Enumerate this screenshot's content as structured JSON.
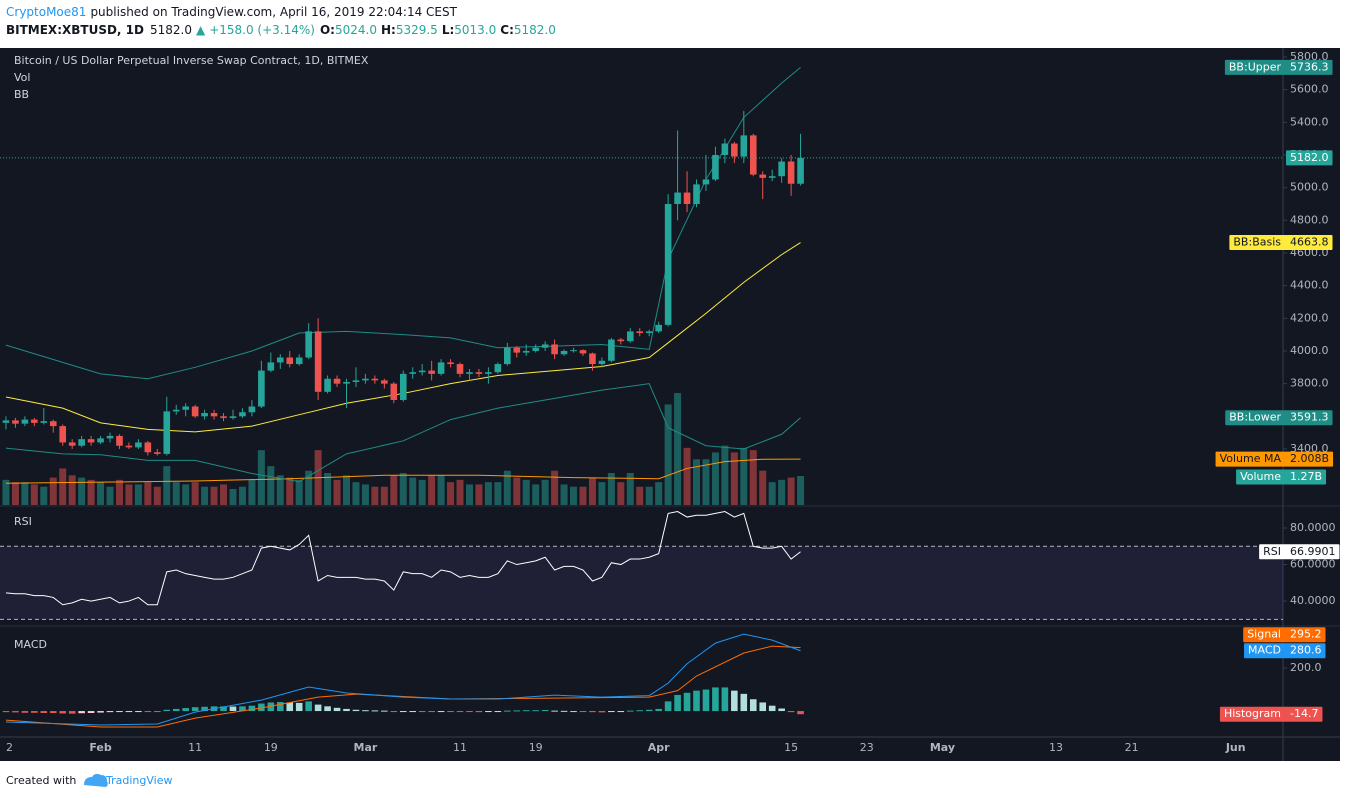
{
  "header": {
    "author": "CryptoMoe81",
    "published": "published on TradingView.com, April 16, 2019 22:04:14 CEST",
    "symbol": "BITMEX:XBTUSD, 1D",
    "price": "5182.0",
    "arrow": "▲",
    "change": "+158.0 (+3.14%)",
    "ohlc": [
      {
        "key": "O:",
        "value": "5024.0"
      },
      {
        "key": "H:",
        "value": "5329.5"
      },
      {
        "key": "L:",
        "value": "5013.0"
      },
      {
        "key": "C:",
        "value": "5182.0"
      }
    ]
  },
  "footer": {
    "text": "Created with",
    "brand": "TradingView"
  },
  "chart_data": [
    {
      "type": "candlestick",
      "title": "Bitcoin / US Dollar Perpetual Inverse Swap Contract, 1D, BITMEX",
      "study_labels": [
        "Vol",
        "BB"
      ],
      "up_color": "#26a69a",
      "down_color": "#ef5350",
      "open": [
        3560,
        3575,
        3555,
        3580,
        3560,
        3570,
        3540,
        3440,
        3420,
        3460,
        3440,
        3465,
        3480,
        3420,
        3410,
        3440,
        3380,
        3370,
        3630,
        3640,
        3660,
        3600,
        3620,
        3600,
        3590,
        3600,
        3625,
        3660,
        3880,
        3930,
        3960,
        3920,
        3960,
        4120,
        3750,
        3830,
        3800,
        3810,
        3820,
        3830,
        3820,
        3800,
        3700,
        3860,
        3870,
        3880,
        3860,
        3930,
        3920,
        3860,
        3870,
        3860,
        3870,
        3920,
        4020,
        3990,
        4000,
        4020,
        4040,
        3980,
        4000,
        4005,
        3985,
        3920,
        3940,
        4070,
        4060,
        4120,
        4110,
        4120,
        4160,
        4900,
        4970,
        4900,
        5020,
        5050,
        5200,
        5270,
        5190,
        5320,
        5080,
        5060,
        5070,
        5160,
        5024
      ],
      "high": [
        3600,
        3590,
        3600,
        3590,
        3650,
        3580,
        3550,
        3460,
        3480,
        3480,
        3480,
        3500,
        3490,
        3440,
        3460,
        3450,
        3400,
        3720,
        3670,
        3680,
        3670,
        3640,
        3640,
        3620,
        3640,
        3650,
        3700,
        3940,
        3990,
        3980,
        4000,
        3980,
        4170,
        4200,
        3850,
        3850,
        3830,
        3900,
        3860,
        3850,
        3830,
        3810,
        3880,
        3900,
        3920,
        3940,
        3950,
        3950,
        3930,
        3890,
        3890,
        3900,
        3930,
        4050,
        4030,
        4040,
        4040,
        4060,
        4070,
        4010,
        4020,
        4010,
        3990,
        3960,
        4080,
        4080,
        4140,
        4140,
        4130,
        4180,
        4960,
        5350,
        5100,
        5050,
        5200,
        5250,
        5300,
        5280,
        5470,
        5330,
        5100,
        5110,
        5180,
        5200,
        5329.5
      ],
      "low": [
        3520,
        3530,
        3540,
        3540,
        3550,
        3500,
        3420,
        3400,
        3410,
        3420,
        3430,
        3440,
        3400,
        3400,
        3400,
        3360,
        3360,
        3360,
        3610,
        3600,
        3590,
        3580,
        3580,
        3570,
        3580,
        3590,
        3600,
        3650,
        3870,
        3890,
        3900,
        3910,
        3950,
        3700,
        3740,
        3780,
        3650,
        3780,
        3800,
        3800,
        3770,
        3680,
        3690,
        3830,
        3850,
        3820,
        3850,
        3900,
        3840,
        3820,
        3840,
        3800,
        3860,
        3910,
        3960,
        3970,
        3990,
        4000,
        3950,
        3970,
        3990,
        3970,
        3880,
        3900,
        3930,
        4040,
        4050,
        4090,
        4090,
        4110,
        4150,
        4800,
        4850,
        4880,
        4980,
        5040,
        5150,
        5150,
        5150,
        5070,
        4930,
        5040,
        5030,
        4950,
        5013
      ],
      "close": [
        3575,
        3555,
        3580,
        3560,
        3570,
        3540,
        3440,
        3420,
        3460,
        3440,
        3465,
        3480,
        3420,
        3410,
        3440,
        3380,
        3370,
        3630,
        3640,
        3660,
        3600,
        3620,
        3600,
        3590,
        3600,
        3625,
        3660,
        3880,
        3930,
        3960,
        3920,
        3960,
        4120,
        3750,
        3830,
        3800,
        3810,
        3820,
        3830,
        3820,
        3800,
        3700,
        3860,
        3870,
        3880,
        3860,
        3930,
        3920,
        3860,
        3870,
        3860,
        3870,
        3920,
        4020,
        3990,
        4000,
        4020,
        4040,
        3980,
        4000,
        4005,
        3985,
        3920,
        3940,
        4070,
        4060,
        4120,
        4110,
        4120,
        4160,
        4900,
        4970,
        4900,
        5020,
        5050,
        5200,
        5270,
        5190,
        5320,
        5080,
        5060,
        5070,
        5160,
        5024,
        5182
      ],
      "last_price": {
        "value": 5182,
        "label": "5182.0"
      },
      "xlim": [
        -0.63,
        135
      ],
      "ylim": [
        3057,
        5855
      ],
      "yticks": [
        {
          "value": 3400,
          "label": "3400.0"
        },
        {
          "value": 3600,
          "label": "3600.0"
        },
        {
          "value": 3800,
          "label": "3800.0"
        },
        {
          "value": 4000,
          "label": "4000.0"
        },
        {
          "value": 4200,
          "label": "4200.0"
        },
        {
          "value": 4400,
          "label": "4400.0"
        },
        {
          "value": 4600,
          "label": "4600.0"
        },
        {
          "value": 4800,
          "label": "4800.0"
        },
        {
          "value": 5000,
          "label": "5000.0"
        },
        {
          "value": 5200,
          "label": "5200.0"
        },
        {
          "value": 5400,
          "label": "5400.0"
        },
        {
          "value": 5600,
          "label": "5600.0"
        },
        {
          "value": 5800,
          "label": "5800.0"
        }
      ],
      "bands": [
        {
          "name": "BB:Upper",
          "color": "#1f8c85",
          "x": [
            0,
            6,
            10,
            15,
            20,
            26,
            31,
            36,
            42,
            47,
            52,
            58,
            63,
            68,
            70,
            74,
            78,
            82,
            84
          ],
          "values": [
            4036,
            3930,
            3860,
            3830,
            3900,
            4000,
            4110,
            4120,
            4100,
            4080,
            4020,
            4030,
            4040,
            4010,
            4560,
            5050,
            5430,
            5640,
            5736.3
          ]
        },
        {
          "name": "BB:Basis",
          "color": "#ffeb3b",
          "x": [
            0,
            6,
            10,
            15,
            20,
            26,
            31,
            36,
            42,
            47,
            52,
            58,
            63,
            68,
            70,
            74,
            78,
            82,
            84
          ],
          "values": [
            3718,
            3650,
            3560,
            3520,
            3505,
            3540,
            3610,
            3680,
            3740,
            3800,
            3850,
            3880,
            3905,
            3960,
            4050,
            4230,
            4420,
            4590,
            4663.8
          ]
        },
        {
          "name": "BB:Lower",
          "color": "#1f8c85",
          "x": [
            0,
            6,
            10,
            15,
            20,
            26,
            31,
            36,
            42,
            47,
            52,
            58,
            63,
            68,
            70,
            74,
            78,
            82,
            84
          ],
          "values": [
            3405,
            3370,
            3365,
            3330,
            3330,
            3250,
            3200,
            3370,
            3450,
            3580,
            3650,
            3710,
            3760,
            3800,
            3530,
            3420,
            3400,
            3490,
            3591.3
          ]
        }
      ],
      "volume": {
        "name": "Volume",
        "color": "#26a69a",
        "ylim": [
          0,
          20
        ],
        "values": [
          1.1,
          1.0,
          1.0,
          0.9,
          0.8,
          1.2,
          1.6,
          1.3,
          1.2,
          1.1,
          1.0,
          0.8,
          1.1,
          0.9,
          0.9,
          1.0,
          0.8,
          1.7,
          1.0,
          0.9,
          1.0,
          0.8,
          0.8,
          0.9,
          0.7,
          0.8,
          1.1,
          2.4,
          1.7,
          1.3,
          1.2,
          1.1,
          1.5,
          2.4,
          1.4,
          1.1,
          1.3,
          1.0,
          0.9,
          0.8,
          0.8,
          1.3,
          1.4,
          1.2,
          1.1,
          1.3,
          1.3,
          1.0,
          1.1,
          0.9,
          0.9,
          1.0,
          1.0,
          1.5,
          1.2,
          1.1,
          0.9,
          1.1,
          1.5,
          0.9,
          0.8,
          0.8,
          1.2,
          1.0,
          1.4,
          1.0,
          1.4,
          0.8,
          0.8,
          1.0,
          4.4,
          4.9,
          2.5,
          2.0,
          2.0,
          2.3,
          2.6,
          2.3,
          2.5,
          2.4,
          1.5,
          1.0,
          1.1,
          1.2,
          1.27
        ],
        "value_labels": {
          "84": "1.27B"
        }
      },
      "volume_ma": {
        "name": "Volume MA",
        "color": "#ff9800",
        "x": [
          0,
          10,
          20,
          30,
          40,
          50,
          60,
          69,
          72,
          76,
          80,
          84
        ],
        "values": [
          0.95,
          1.0,
          1.05,
          1.15,
          1.3,
          1.3,
          1.2,
          1.15,
          1.6,
          1.9,
          2.0,
          2.008
        ],
        "value_labels": {
          "11": "2.008B"
        }
      }
    },
    {
      "type": "line",
      "title": "RSI",
      "xlim": [
        -0.63,
        135
      ],
      "ylim": [
        26.9,
        91.5
      ],
      "yticks": [
        {
          "value": 40,
          "label": "40.0000"
        },
        {
          "value": 60,
          "label": "60.0000"
        },
        {
          "value": 80,
          "label": "80.0000"
        }
      ],
      "bands": [
        30,
        70
      ],
      "band_color": "#7e57c2",
      "series": [
        {
          "name": "RSI",
          "color": "#ffffff",
          "values": [
            44.5,
            44,
            44,
            43,
            43,
            42,
            38,
            39,
            41,
            40,
            41,
            42,
            39,
            40,
            42,
            38,
            38,
            56,
            57,
            55,
            54,
            53,
            52,
            52,
            53,
            55,
            57,
            69,
            70,
            69,
            68,
            71,
            76,
            51,
            54,
            53,
            53,
            53,
            52,
            52,
            51,
            46,
            56,
            55,
            55,
            53,
            57,
            56,
            53,
            54,
            53,
            53,
            55,
            62,
            60,
            61,
            62,
            64,
            57,
            59,
            59,
            57,
            51,
            53,
            61,
            60,
            63,
            63,
            64,
            66,
            88,
            89,
            86,
            87,
            87,
            88,
            89,
            86,
            88,
            70,
            69,
            69,
            70,
            63,
            66.9901
          ]
        }
      ]
    },
    {
      "type": "macd",
      "title": "MACD",
      "xlim": [
        -0.63,
        135
      ],
      "ylim": [
        -116,
        391
      ],
      "yticks": [
        {
          "value": 200,
          "label": "200.0"
        }
      ],
      "xticks": [
        {
          "value": 0,
          "label": "2"
        },
        {
          "value": 10,
          "label": "Feb"
        },
        {
          "value": 20,
          "label": "11"
        },
        {
          "value": 28,
          "label": "19"
        },
        {
          "value": 38,
          "label": "Mar"
        },
        {
          "value": 48,
          "label": "11"
        },
        {
          "value": 56,
          "label": "19"
        },
        {
          "value": 69,
          "label": "Apr"
        },
        {
          "value": 83,
          "label": "15"
        },
        {
          "value": 91,
          "label": "23"
        },
        {
          "value": 99,
          "label": "May"
        },
        {
          "value": 111,
          "label": "13"
        },
        {
          "value": 119,
          "label": "21"
        },
        {
          "value": 130,
          "label": "Jun"
        }
      ],
      "series": [
        {
          "name": "Signal",
          "color": "#ff6d00",
          "x": [
            0,
            10,
            16,
            20,
            27,
            33,
            37,
            47,
            58,
            68,
            71,
            73,
            78,
            81,
            84
          ],
          "values": [
            -42,
            -74,
            -74,
            -33,
            14,
            65,
            79,
            56,
            60,
            65,
            95,
            163,
            270,
            302,
            295.2
          ]
        },
        {
          "name": "MACD",
          "color": "#2196f3",
          "x": [
            0,
            10,
            16,
            20,
            27,
            32,
            36,
            42,
            47,
            52,
            58,
            63,
            68,
            70,
            72,
            75,
            78,
            81,
            84
          ],
          "values": [
            -51,
            -65,
            -60,
            -5,
            51,
            112,
            84,
            65,
            56,
            56,
            74,
            65,
            72,
            130,
            220,
            316,
            358,
            330,
            280.6
          ]
        }
      ],
      "histogram": {
        "name": "Histogram",
        "colors": [
          "#26a69a",
          "#b2dfdb",
          "#ffcdd2",
          "#ef5350"
        ],
        "values": [
          -5,
          -6,
          -8,
          -8,
          -9,
          -9,
          -11,
          -12,
          -10,
          -9,
          -7,
          -5,
          -4,
          -3,
          -2,
          -2,
          -3,
          6,
          10,
          14,
          18,
          20,
          22,
          22,
          21,
          22,
          25,
          35,
          40,
          42,
          40,
          38,
          45,
          30,
          22,
          15,
          10,
          6,
          4,
          3,
          2,
          -4,
          -2,
          -1,
          -2,
          -3,
          -1,
          -2,
          -4,
          -4,
          -5,
          -4,
          -3,
          2,
          3,
          4,
          4,
          5,
          2,
          1,
          0,
          -1,
          -5,
          -6,
          -2,
          -1,
          2,
          4,
          6,
          10,
          45,
          75,
          85,
          95,
          100,
          110,
          110,
          95,
          80,
          55,
          40,
          25,
          12,
          -5,
          -14.7
        ]
      }
    }
  ]
}
